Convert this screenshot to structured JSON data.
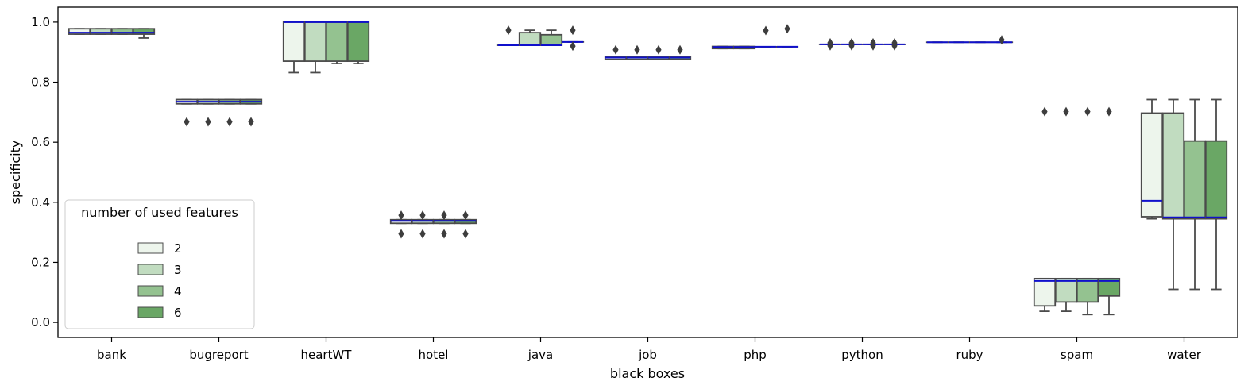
{
  "chart_data": {
    "type": "box",
    "xlabel": "black boxes",
    "ylabel": "specificity",
    "ylim": [
      -0.05,
      1.05
    ],
    "yticks": [
      0.0,
      0.2,
      0.4,
      0.6,
      0.8,
      1.0
    ],
    "ytick_labels": [
      "0.0",
      "0.2",
      "0.4",
      "0.6",
      "0.8",
      "1.0"
    ],
    "categories": [
      "bank",
      "bugreport",
      "heartWT",
      "hotel",
      "java",
      "job",
      "php",
      "python",
      "ruby",
      "spam",
      "water"
    ],
    "legend": {
      "title": "number of used features",
      "placement": "lower-left",
      "entries": [
        "2",
        "3",
        "4",
        "6"
      ]
    },
    "series_colors": [
      "#edf5ec",
      "#c1dcc0",
      "#94c290",
      "#6aa765"
    ],
    "box_edge_color": "#4b4b4b",
    "median_color": "#1010cc",
    "series": [
      {
        "name": "2",
        "boxes": [
          {
            "whislo": 0.96,
            "q1": 0.96,
            "med": 0.965,
            "q3": 0.978,
            "whishi": 0.978,
            "fliers": []
          },
          {
            "whislo": 0.728,
            "q1": 0.728,
            "med": 0.735,
            "q3": 0.742,
            "whishi": 0.742,
            "fliers": [
              0.668
            ]
          },
          {
            "whislo": 0.832,
            "q1": 0.87,
            "med": 1.0,
            "q3": 1.0,
            "whishi": 1.0,
            "fliers": []
          },
          {
            "whislo": 0.33,
            "q1": 0.33,
            "med": 0.338,
            "q3": 0.342,
            "whishi": 0.342,
            "fliers": [
              0.357,
              0.295
            ]
          },
          {
            "whislo": 0.923,
            "q1": 0.923,
            "med": 0.923,
            "q3": 0.923,
            "whishi": 0.923,
            "fliers": [
              0.973
            ]
          },
          {
            "whislo": 0.876,
            "q1": 0.876,
            "med": 0.882,
            "q3": 0.884,
            "whishi": 0.884,
            "fliers": [
              0.908
            ]
          },
          {
            "whislo": 0.912,
            "q1": 0.912,
            "med": 0.917,
            "q3": 0.919,
            "whishi": 0.919,
            "fliers": []
          },
          {
            "whislo": 0.926,
            "q1": 0.926,
            "med": 0.926,
            "q3": 0.926,
            "whishi": 0.926,
            "fliers": [
              0.921,
              0.931
            ]
          },
          {
            "whislo": 0.933,
            "q1": 0.933,
            "med": 0.933,
            "q3": 0.933,
            "whishi": 0.933,
            "fliers": []
          },
          {
            "whislo": 0.037,
            "q1": 0.055,
            "med": 0.138,
            "q3": 0.146,
            "whishi": 0.146,
            "fliers": [
              0.702
            ]
          },
          {
            "whislo": 0.345,
            "q1": 0.352,
            "med": 0.405,
            "q3": 0.697,
            "whishi": 0.742,
            "fliers": []
          }
        ]
      },
      {
        "name": "3",
        "boxes": [
          {
            "whislo": 0.96,
            "q1": 0.96,
            "med": 0.965,
            "q3": 0.978,
            "whishi": 0.978,
            "fliers": []
          },
          {
            "whislo": 0.728,
            "q1": 0.728,
            "med": 0.735,
            "q3": 0.742,
            "whishi": 0.742,
            "fliers": [
              0.668
            ]
          },
          {
            "whislo": 0.832,
            "q1": 0.87,
            "med": 1.0,
            "q3": 1.0,
            "whishi": 1.0,
            "fliers": []
          },
          {
            "whislo": 0.33,
            "q1": 0.33,
            "med": 0.338,
            "q3": 0.342,
            "whishi": 0.342,
            "fliers": [
              0.357,
              0.295
            ]
          },
          {
            "whislo": 0.923,
            "q1": 0.923,
            "med": 0.923,
            "q3": 0.965,
            "whishi": 0.973,
            "fliers": []
          },
          {
            "whislo": 0.876,
            "q1": 0.876,
            "med": 0.882,
            "q3": 0.884,
            "whishi": 0.884,
            "fliers": [
              0.908
            ]
          },
          {
            "whislo": 0.912,
            "q1": 0.912,
            "med": 0.917,
            "q3": 0.919,
            "whishi": 0.919,
            "fliers": []
          },
          {
            "whislo": 0.926,
            "q1": 0.926,
            "med": 0.926,
            "q3": 0.926,
            "whishi": 0.926,
            "fliers": [
              0.921,
              0.931
            ]
          },
          {
            "whislo": 0.933,
            "q1": 0.933,
            "med": 0.933,
            "q3": 0.933,
            "whishi": 0.933,
            "fliers": []
          },
          {
            "whislo": 0.037,
            "q1": 0.068,
            "med": 0.138,
            "q3": 0.146,
            "whishi": 0.146,
            "fliers": [
              0.702
            ]
          },
          {
            "whislo": 0.11,
            "q1": 0.345,
            "med": 0.35,
            "q3": 0.697,
            "whishi": 0.742,
            "fliers": []
          }
        ]
      },
      {
        "name": "4",
        "boxes": [
          {
            "whislo": 0.96,
            "q1": 0.96,
            "med": 0.965,
            "q3": 0.978,
            "whishi": 0.978,
            "fliers": []
          },
          {
            "whislo": 0.728,
            "q1": 0.728,
            "med": 0.735,
            "q3": 0.742,
            "whishi": 0.742,
            "fliers": [
              0.668
            ]
          },
          {
            "whislo": 0.862,
            "q1": 0.87,
            "med": 1.0,
            "q3": 1.0,
            "whishi": 1.0,
            "fliers": []
          },
          {
            "whislo": 0.33,
            "q1": 0.33,
            "med": 0.338,
            "q3": 0.342,
            "whishi": 0.342,
            "fliers": [
              0.357,
              0.295
            ]
          },
          {
            "whislo": 0.923,
            "q1": 0.923,
            "med": 0.923,
            "q3": 0.958,
            "whishi": 0.973,
            "fliers": []
          },
          {
            "whislo": 0.876,
            "q1": 0.876,
            "med": 0.882,
            "q3": 0.884,
            "whishi": 0.884,
            "fliers": [
              0.908
            ]
          },
          {
            "whislo": 0.918,
            "q1": 0.918,
            "med": 0.918,
            "q3": 0.918,
            "whishi": 0.918,
            "fliers": [
              0.972
            ]
          },
          {
            "whislo": 0.926,
            "q1": 0.926,
            "med": 0.926,
            "q3": 0.926,
            "whishi": 0.926,
            "fliers": [
              0.921,
              0.931
            ]
          },
          {
            "whislo": 0.933,
            "q1": 0.933,
            "med": 0.933,
            "q3": 0.933,
            "whishi": 0.933,
            "fliers": []
          },
          {
            "whislo": 0.026,
            "q1": 0.068,
            "med": 0.138,
            "q3": 0.146,
            "whishi": 0.146,
            "fliers": [
              0.702
            ]
          },
          {
            "whislo": 0.11,
            "q1": 0.345,
            "med": 0.35,
            "q3": 0.604,
            "whishi": 0.742,
            "fliers": []
          }
        ]
      },
      {
        "name": "6",
        "boxes": [
          {
            "whislo": 0.947,
            "q1": 0.96,
            "med": 0.965,
            "q3": 0.978,
            "whishi": 0.978,
            "fliers": []
          },
          {
            "whislo": 0.728,
            "q1": 0.728,
            "med": 0.735,
            "q3": 0.742,
            "whishi": 0.742,
            "fliers": [
              0.668
            ]
          },
          {
            "whislo": 0.862,
            "q1": 0.87,
            "med": 1.0,
            "q3": 1.0,
            "whishi": 1.0,
            "fliers": []
          },
          {
            "whislo": 0.33,
            "q1": 0.33,
            "med": 0.338,
            "q3": 0.342,
            "whishi": 0.342,
            "fliers": [
              0.357,
              0.295
            ]
          },
          {
            "whislo": 0.934,
            "q1": 0.934,
            "med": 0.934,
            "q3": 0.934,
            "whishi": 0.934,
            "fliers": [
              0.973,
              0.92
            ]
          },
          {
            "whislo": 0.876,
            "q1": 0.876,
            "med": 0.882,
            "q3": 0.884,
            "whishi": 0.884,
            "fliers": [
              0.908
            ]
          },
          {
            "whislo": 0.918,
            "q1": 0.918,
            "med": 0.918,
            "q3": 0.918,
            "whishi": 0.918,
            "fliers": [
              0.978
            ]
          },
          {
            "whislo": 0.926,
            "q1": 0.926,
            "med": 0.926,
            "q3": 0.926,
            "whishi": 0.926,
            "fliers": [
              0.921,
              0.931
            ]
          },
          {
            "whislo": 0.933,
            "q1": 0.933,
            "med": 0.933,
            "q3": 0.933,
            "whishi": 0.933,
            "fliers": [
              0.941
            ]
          },
          {
            "whislo": 0.026,
            "q1": 0.088,
            "med": 0.138,
            "q3": 0.146,
            "whishi": 0.146,
            "fliers": [
              0.702
            ]
          },
          {
            "whislo": 0.11,
            "q1": 0.345,
            "med": 0.35,
            "q3": 0.604,
            "whishi": 0.742,
            "fliers": []
          }
        ]
      }
    ]
  }
}
